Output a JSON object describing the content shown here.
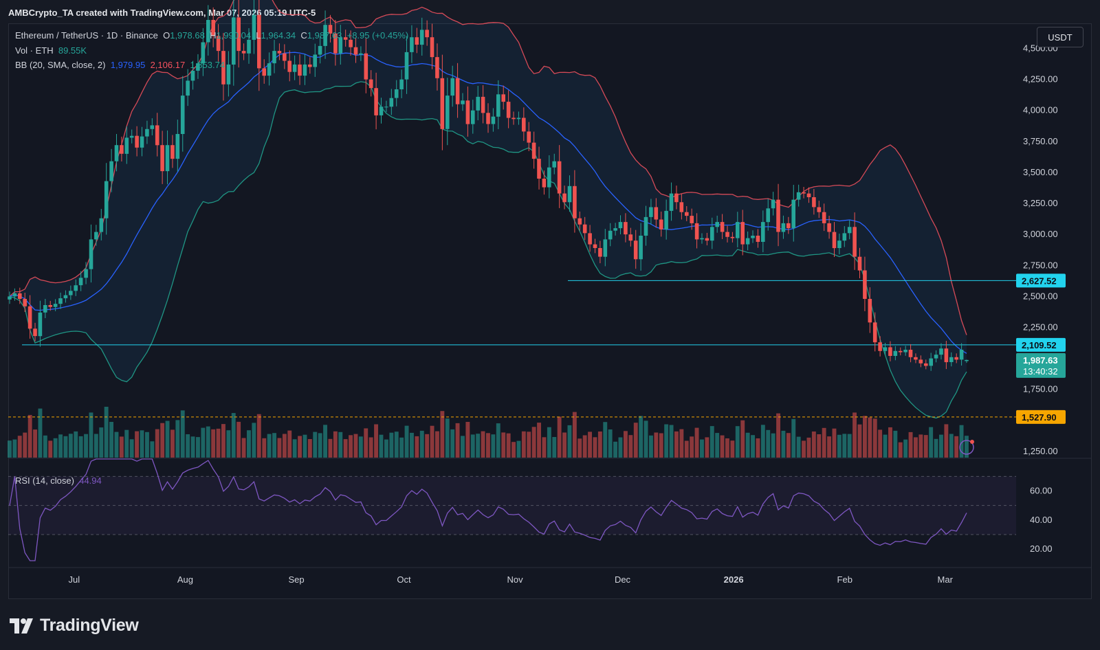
{
  "header": {
    "credit": "AMBCrypto_TA created with TradingView.com, Mar 07, 2026 05:19 UTC-5",
    "unit_badge": "USDT"
  },
  "legend": {
    "symbol": "Ethereum / TetherUS · 1D · Binance",
    "o_label": "O",
    "open": "1,978.68",
    "h_label": "H",
    "high": "1,990.04",
    "l_label": "L",
    "low": "1,964.34",
    "c_label": "C",
    "close": "1,987.63",
    "change": "+8.95 (+0.45%)",
    "vol_label": "Vol · ETH",
    "vol_value": "89.55K",
    "bb_label": "BB (20, SMA, close, 2)",
    "bb_basis": "1,979.95",
    "bb_upper": "2,106.17",
    "bb_lower": "1,853.74",
    "rsi_label": "RSI (14, close)",
    "rsi_value": "44.94"
  },
  "colors": {
    "up": "#26a69a",
    "down": "#ef5350",
    "basis": "#2962ff",
    "upper": "#f7525f",
    "lower": "#22ab94",
    "hline": "#22d3ee",
    "support": "#f7a600",
    "rsi": "#7e57c2",
    "background": "#131722"
  },
  "footer": {
    "brand": "TradingView"
  },
  "chart_data": [
    {
      "type": "candlestick",
      "title": "Ethereum / TetherUS · 1D · Binance",
      "y_scale": "linear",
      "ylim": [
        1200,
        4680
      ],
      "y_ticks": [
        {
          "v": 4500,
          "label": "4,500.00"
        },
        {
          "v": 4250,
          "label": "4,250.00"
        },
        {
          "v": 4000,
          "label": "4,000.00"
        },
        {
          "v": 3750,
          "label": "3,750.00"
        },
        {
          "v": 3500,
          "label": "3,500.00"
        },
        {
          "v": 3250,
          "label": "3,250.00"
        },
        {
          "v": 3000,
          "label": "3,000.00"
        },
        {
          "v": 2750,
          "label": "2,750.00"
        },
        {
          "v": 2500,
          "label": "2,500.00"
        },
        {
          "v": 2250,
          "label": "2,250.00"
        },
        {
          "v": 1750,
          "label": "1,750.00"
        },
        {
          "v": 1250,
          "label": "1,250.00"
        }
      ],
      "x_ticks": [
        {
          "label": "Jul",
          "date": "2025-07-01"
        },
        {
          "label": "Aug",
          "date": "2025-08-01"
        },
        {
          "label": "Sep",
          "date": "2025-09-01"
        },
        {
          "label": "Oct",
          "date": "2025-10-01"
        },
        {
          "label": "Nov",
          "date": "2025-11-01"
        },
        {
          "label": "Dec",
          "date": "2025-12-01"
        },
        {
          "label": "2026",
          "date": "2026-01-01"
        },
        {
          "label": "Feb",
          "date": "2026-02-01"
        },
        {
          "label": "Mar",
          "date": "2026-03-01"
        }
      ],
      "date_range": [
        "2025-06-13",
        "2026-03-07"
      ],
      "price_closes": [
        2500,
        2525,
        2480,
        2420,
        2240,
        2180,
        2370,
        2430,
        2415,
        2440,
        2485,
        2510,
        2545,
        2590,
        2650,
        2720,
        2960,
        3020,
        3130,
        3430,
        3590,
        3720,
        3650,
        3780,
        3795,
        3700,
        3790,
        3850,
        3880,
        3720,
        3510,
        3720,
        3610,
        3810,
        4120,
        4240,
        4320,
        4380,
        4550,
        4730,
        4600,
        4480,
        4210,
        4370,
        4750,
        4480,
        4460,
        4570,
        4770,
        4340,
        4280,
        4380,
        4480,
        4460,
        4400,
        4310,
        4370,
        4280,
        4370,
        4350,
        4450,
        4520,
        4690,
        4620,
        4460,
        4590,
        4570,
        4510,
        4450,
        4460,
        4250,
        4180,
        3960,
        4030,
        4030,
        4100,
        4170,
        4250,
        4470,
        4590,
        4530,
        4650,
        4590,
        4430,
        4260,
        3850,
        4120,
        4260,
        4050,
        4080,
        3890,
        4000,
        4110,
        3980,
        3890,
        3950,
        4130,
        4070,
        3940,
        3930,
        3940,
        3830,
        3740,
        3610,
        3450,
        3380,
        3540,
        3590,
        3330,
        3260,
        3390,
        3130,
        3080,
        3010,
        2920,
        2890,
        2820,
        2960,
        3030,
        3050,
        3100,
        3000,
        2950,
        2800,
        2990,
        3140,
        3220,
        3120,
        3040,
        3190,
        3330,
        3260,
        3180,
        3150,
        3090,
        2960,
        2970,
        2950,
        3060,
        3100,
        3020,
        2980,
        2970,
        3100,
        2920,
        2970,
        2990,
        2940,
        3100,
        3210,
        3280,
        3020,
        3090,
        3050,
        3280,
        3340,
        3330,
        3300,
        3220,
        3180,
        3090,
        3020,
        2890,
        2950,
        3010,
        3060,
        2820,
        2710,
        2480,
        2290,
        2130,
        2060,
        2090,
        2020,
        2060,
        2050,
        2070,
        2010,
        1990,
        1960,
        1940,
        2000,
        2030,
        2080,
        1970,
        2010,
        1990,
        2070,
        1988
      ],
      "price_summary": {
        "open": 1978.68,
        "high": 1990.04,
        "low": 1964.34,
        "close": 1987.63,
        "change": 8.95,
        "change_pct": 0.45
      },
      "bollinger_bands": {
        "period": 20,
        "ma": "SMA",
        "source": "close",
        "stddev": 2,
        "basis_last": 1979.95,
        "upper_last": 2106.17,
        "lower_last": 1853.74
      },
      "horizontal_lines": [
        {
          "value": 2627.52,
          "label": "2,627.52",
          "color": "#22d3ee"
        },
        {
          "value": 2109.52,
          "label": "2,109.52",
          "color": "#22d3ee"
        },
        {
          "value": 1527.9,
          "label": "1,527.90",
          "color": "#f7a600",
          "style": "dashed"
        }
      ],
      "last_price": {
        "value": 1987.63,
        "label": "1,987.63",
        "countdown": "13:40:32"
      },
      "volume_label": "Vol · ETH",
      "volume_last": "89.55K"
    },
    {
      "type": "line",
      "title": "RSI (14, close)",
      "ylim": [
        12,
        82
      ],
      "y_ticks": [
        {
          "v": 60,
          "label": "60.00"
        },
        {
          "v": 40,
          "label": "40.00"
        },
        {
          "v": 20,
          "label": "20.00"
        }
      ],
      "bands": [
        30,
        50,
        70
      ],
      "last_value": 44.94
    }
  ]
}
